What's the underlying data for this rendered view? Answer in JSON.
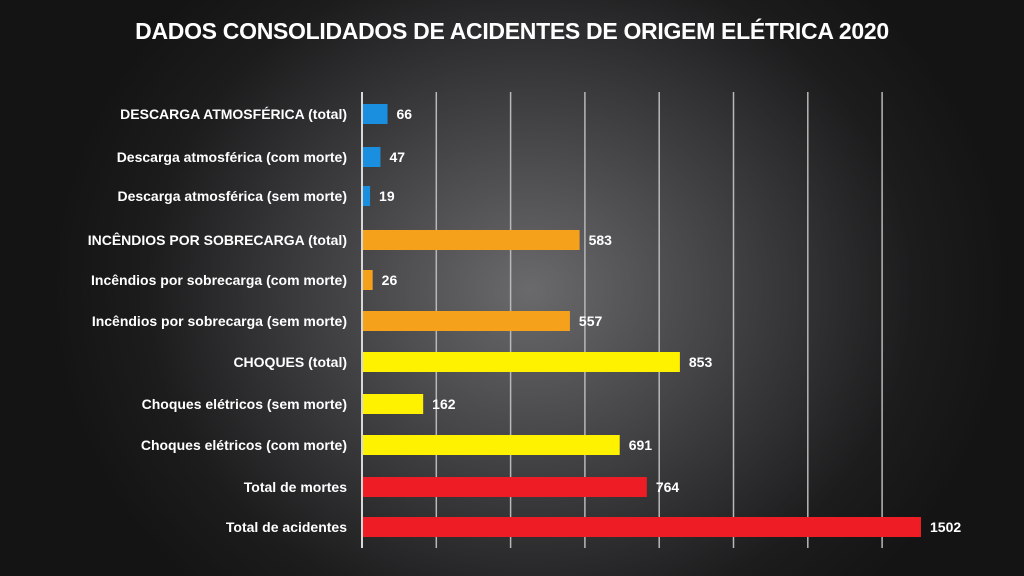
{
  "chart_data": {
    "type": "bar",
    "orientation": "horizontal",
    "title": "DADOS CONSOLIDADOS DE ACIDENTES DE ORIGEM ELÉTRICA 2020",
    "categories": [
      "DESCARGA ATMOSFÉRICA (total)",
      "Descarga atmosférica (com morte)",
      "Descarga atmosférica (sem morte)",
      "INCÊNDIOS POR SOBRECARGA (total)",
      "Incêndios por sobrecarga (com morte)",
      "Incêndios por sobrecarga (sem morte)",
      "CHOQUES (total)",
      "Choques elétricos (sem morte)",
      "Choques elétricos (com morte)",
      "Total de mortes",
      "Total de acidentes"
    ],
    "values": [
      66,
      47,
      19,
      583,
      26,
      557,
      853,
      162,
      691,
      764,
      1502
    ],
    "data_labels": [
      "66",
      "47",
      "19",
      "583",
      "26",
      "557",
      "853",
      "162",
      "691",
      "764",
      "1502"
    ],
    "colors": [
      "#1a8fe0",
      "#1a8fe0",
      "#1a8fe0",
      "#f5a11c",
      "#f5a11c",
      "#f5a11c",
      "#fff200",
      "#fff200",
      "#fff200",
      "#ee1c25",
      "#ee1c25"
    ],
    "xlim": [
      0,
      1500
    ],
    "grid_step": 200,
    "grid": true,
    "xlabel": "",
    "ylabel": ""
  }
}
